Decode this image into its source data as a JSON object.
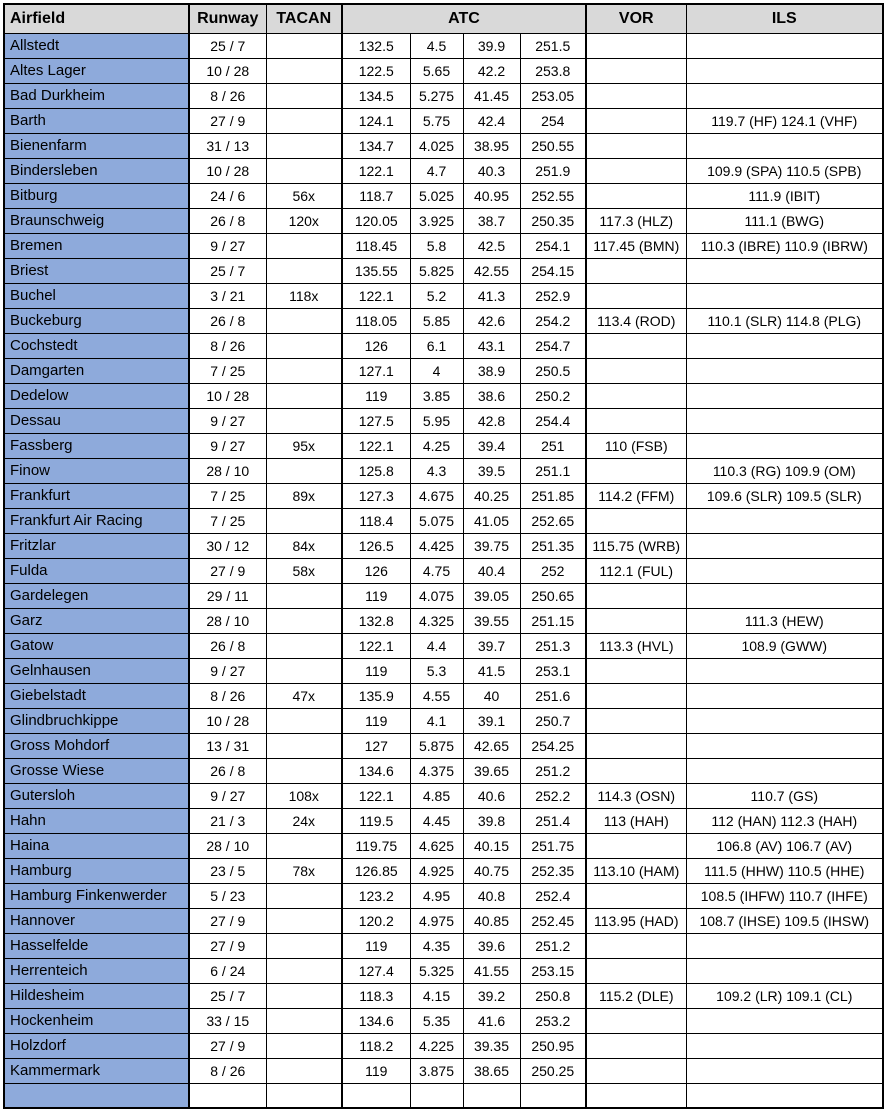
{
  "table": {
    "columns": {
      "airfield": "Airfield",
      "runway": "Runway",
      "tacan": "TACAN",
      "atc": "ATC",
      "vor": "VOR",
      "ils": "ILS"
    },
    "colors": {
      "header_bg": "#d9d9d9",
      "airfield_column_bg": "#8eaadb",
      "border": "#000000"
    },
    "rows": [
      {
        "airfield": "Allstedt",
        "runway": "25 / 7",
        "tacan": "",
        "atc": [
          "132.5",
          "4.5",
          "39.9",
          "251.5"
        ],
        "vor": "",
        "ils": ""
      },
      {
        "airfield": "Altes Lager",
        "runway": "10 / 28",
        "tacan": "",
        "atc": [
          "122.5",
          "5.65",
          "42.2",
          "253.8"
        ],
        "vor": "",
        "ils": ""
      },
      {
        "airfield": "Bad Durkheim",
        "runway": "8 / 26",
        "tacan": "",
        "atc": [
          "134.5",
          "5.275",
          "41.45",
          "253.05"
        ],
        "vor": "",
        "ils": ""
      },
      {
        "airfield": "Barth",
        "runway": "27 / 9",
        "tacan": "",
        "atc": [
          "124.1",
          "5.75",
          "42.4",
          "254"
        ],
        "vor": "",
        "ils": "119.7 (HF) 124.1 (VHF)"
      },
      {
        "airfield": "Bienenfarm",
        "runway": "31 / 13",
        "tacan": "",
        "atc": [
          "134.7",
          "4.025",
          "38.95",
          "250.55"
        ],
        "vor": "",
        "ils": ""
      },
      {
        "airfield": "Bindersleben",
        "runway": "10 / 28",
        "tacan": "",
        "atc": [
          "122.1",
          "4.7",
          "40.3",
          "251.9"
        ],
        "vor": "",
        "ils": "109.9 (SPA) 110.5 (SPB)"
      },
      {
        "airfield": "Bitburg",
        "runway": "24 / 6",
        "tacan": "56x",
        "atc": [
          "118.7",
          "5.025",
          "40.95",
          "252.55"
        ],
        "vor": "",
        "ils": "111.9 (IBIT)"
      },
      {
        "airfield": "Braunschweig",
        "runway": "26 / 8",
        "tacan": "120x",
        "atc": [
          "120.05",
          "3.925",
          "38.7",
          "250.35"
        ],
        "vor": "117.3 (HLZ)",
        "ils": "111.1 (BWG)"
      },
      {
        "airfield": "Bremen",
        "runway": "9 / 27",
        "tacan": "",
        "atc": [
          "118.45",
          "5.8",
          "42.5",
          "254.1"
        ],
        "vor": "117.45 (BMN)",
        "ils": "110.3 (IBRE) 110.9 (IBRW)"
      },
      {
        "airfield": "Briest",
        "runway": "25 / 7",
        "tacan": "",
        "atc": [
          "135.55",
          "5.825",
          "42.55",
          "254.15"
        ],
        "vor": "",
        "ils": ""
      },
      {
        "airfield": "Buchel",
        "runway": "3 / 21",
        "tacan": "118x",
        "atc": [
          "122.1",
          "5.2",
          "41.3",
          "252.9"
        ],
        "vor": "",
        "ils": ""
      },
      {
        "airfield": "Buckeburg",
        "runway": "26 / 8",
        "tacan": "",
        "atc": [
          "118.05",
          "5.85",
          "42.6",
          "254.2"
        ],
        "vor": "113.4 (ROD)",
        "ils": "110.1 (SLR) 114.8 (PLG)"
      },
      {
        "airfield": "Cochstedt",
        "runway": "8 / 26",
        "tacan": "",
        "atc": [
          "126",
          "6.1",
          "43.1",
          "254.7"
        ],
        "vor": "",
        "ils": ""
      },
      {
        "airfield": "Damgarten",
        "runway": "7 / 25",
        "tacan": "",
        "atc": [
          "127.1",
          "4",
          "38.9",
          "250.5"
        ],
        "vor": "",
        "ils": ""
      },
      {
        "airfield": "Dedelow",
        "runway": "10 / 28",
        "tacan": "",
        "atc": [
          "119",
          "3.85",
          "38.6",
          "250.2"
        ],
        "vor": "",
        "ils": ""
      },
      {
        "airfield": "Dessau",
        "runway": "9 / 27",
        "tacan": "",
        "atc": [
          "127.5",
          "5.95",
          "42.8",
          "254.4"
        ],
        "vor": "",
        "ils": ""
      },
      {
        "airfield": "Fassberg",
        "runway": "9 / 27",
        "tacan": "95x",
        "atc": [
          "122.1",
          "4.25",
          "39.4",
          "251"
        ],
        "vor": "110 (FSB)",
        "ils": ""
      },
      {
        "airfield": "Finow",
        "runway": "28 / 10",
        "tacan": "",
        "atc": [
          "125.8",
          "4.3",
          "39.5",
          "251.1"
        ],
        "vor": "",
        "ils": "110.3 (RG) 109.9 (OM)"
      },
      {
        "airfield": "Frankfurt",
        "runway": "7 / 25",
        "tacan": "89x",
        "atc": [
          "127.3",
          "4.675",
          "40.25",
          "251.85"
        ],
        "vor": "114.2 (FFM)",
        "ils": "109.6 (SLR) 109.5 (SLR)"
      },
      {
        "airfield": "Frankfurt Air Racing",
        "runway": "7 / 25",
        "tacan": "",
        "atc": [
          "118.4",
          "5.075",
          "41.05",
          "252.65"
        ],
        "vor": "",
        "ils": ""
      },
      {
        "airfield": "Fritzlar",
        "runway": "30 / 12",
        "tacan": "84x",
        "atc": [
          "126.5",
          "4.425",
          "39.75",
          "251.35"
        ],
        "vor": "115.75 (WRB)",
        "ils": ""
      },
      {
        "airfield": "Fulda",
        "runway": "27 / 9",
        "tacan": "58x",
        "atc": [
          "126",
          "4.75",
          "40.4",
          "252"
        ],
        "vor": "112.1 (FUL)",
        "ils": ""
      },
      {
        "airfield": "Gardelegen",
        "runway": "29 / 11",
        "tacan": "",
        "atc": [
          "119",
          "4.075",
          "39.05",
          "250.65"
        ],
        "vor": "",
        "ils": ""
      },
      {
        "airfield": "Garz",
        "runway": "28 / 10",
        "tacan": "",
        "atc": [
          "132.8",
          "4.325",
          "39.55",
          "251.15"
        ],
        "vor": "",
        "ils": "111.3 (HEW)"
      },
      {
        "airfield": "Gatow",
        "runway": "26 / 8",
        "tacan": "",
        "atc": [
          "122.1",
          "4.4",
          "39.7",
          "251.3"
        ],
        "vor": "113.3 (HVL)",
        "ils": "108.9 (GWW)"
      },
      {
        "airfield": "Gelnhausen",
        "runway": "9 / 27",
        "tacan": "",
        "atc": [
          "119",
          "5.3",
          "41.5",
          "253.1"
        ],
        "vor": "",
        "ils": ""
      },
      {
        "airfield": "Giebelstadt",
        "runway": "8 / 26",
        "tacan": "47x",
        "atc": [
          "135.9",
          "4.55",
          "40",
          "251.6"
        ],
        "vor": "",
        "ils": ""
      },
      {
        "airfield": "Glindbruchkippe",
        "runway": "10 / 28",
        "tacan": "",
        "atc": [
          "119",
          "4.1",
          "39.1",
          "250.7"
        ],
        "vor": "",
        "ils": ""
      },
      {
        "airfield": "Gross Mohdorf",
        "runway": "13 / 31",
        "tacan": "",
        "atc": [
          "127",
          "5.875",
          "42.65",
          "254.25"
        ],
        "vor": "",
        "ils": ""
      },
      {
        "airfield": "Grosse Wiese",
        "runway": "26 / 8",
        "tacan": "",
        "atc": [
          "134.6",
          "4.375",
          "39.65",
          "251.2"
        ],
        "vor": "",
        "ils": ""
      },
      {
        "airfield": "Gutersloh",
        "runway": "9 / 27",
        "tacan": "108x",
        "atc": [
          "122.1",
          "4.85",
          "40.6",
          "252.2"
        ],
        "vor": "114.3 (OSN)",
        "ils": "110.7 (GS)"
      },
      {
        "airfield": "Hahn",
        "runway": "21 / 3",
        "tacan": "24x",
        "atc": [
          "119.5",
          "4.45",
          "39.8",
          "251.4"
        ],
        "vor": "113 (HAH)",
        "ils": "112 (HAN) 112.3 (HAH)"
      },
      {
        "airfield": "Haina",
        "runway": "28 / 10",
        "tacan": "",
        "atc": [
          "119.75",
          "4.625",
          "40.15",
          "251.75"
        ],
        "vor": "",
        "ils": "106.8 (AV) 106.7 (AV)"
      },
      {
        "airfield": "Hamburg",
        "runway": "23 / 5",
        "tacan": "78x",
        "atc": [
          "126.85",
          "4.925",
          "40.75",
          "252.35"
        ],
        "vor": "113.10 (HAM)",
        "ils": "111.5 (HHW) 110.5 (HHE)"
      },
      {
        "airfield": "Hamburg Finkenwerder",
        "runway": "5 / 23",
        "tacan": "",
        "atc": [
          "123.2",
          "4.95",
          "40.8",
          "252.4"
        ],
        "vor": "",
        "ils": "108.5 (IHFW) 110.7 (IHFE)"
      },
      {
        "airfield": "Hannover",
        "runway": "27 / 9",
        "tacan": "",
        "atc": [
          "120.2",
          "4.975",
          "40.85",
          "252.45"
        ],
        "vor": "113.95 (HAD)",
        "ils": "108.7 (IHSE) 109.5 (IHSW)"
      },
      {
        "airfield": "Hasselfelde",
        "runway": "27 / 9",
        "tacan": "",
        "atc": [
          "119",
          "4.35",
          "39.6",
          "251.2"
        ],
        "vor": "",
        "ils": ""
      },
      {
        "airfield": "Herrenteich",
        "runway": "6 / 24",
        "tacan": "",
        "atc": [
          "127.4",
          "5.325",
          "41.55",
          "253.15"
        ],
        "vor": "",
        "ils": ""
      },
      {
        "airfield": "Hildesheim",
        "runway": "25 / 7",
        "tacan": "",
        "atc": [
          "118.3",
          "4.15",
          "39.2",
          "250.8"
        ],
        "vor": "115.2 (DLE)",
        "ils": "109.2 (LR) 109.1 (CL)"
      },
      {
        "airfield": "Hockenheim",
        "runway": "33 / 15",
        "tacan": "",
        "atc": [
          "134.6",
          "5.35",
          "41.6",
          "253.2"
        ],
        "vor": "",
        "ils": ""
      },
      {
        "airfield": "Holzdorf",
        "runway": "27 / 9",
        "tacan": "",
        "atc": [
          "118.2",
          "4.225",
          "39.35",
          "250.95"
        ],
        "vor": "",
        "ils": ""
      },
      {
        "airfield": "Kammermark",
        "runway": "8 / 26",
        "tacan": "",
        "atc": [
          "119",
          "3.875",
          "38.65",
          "250.25"
        ],
        "vor": "",
        "ils": ""
      },
      {
        "airfield": "",
        "runway": "",
        "tacan": "",
        "atc": [
          "",
          "",
          "",
          ""
        ],
        "vor": "",
        "ils": ""
      }
    ]
  }
}
